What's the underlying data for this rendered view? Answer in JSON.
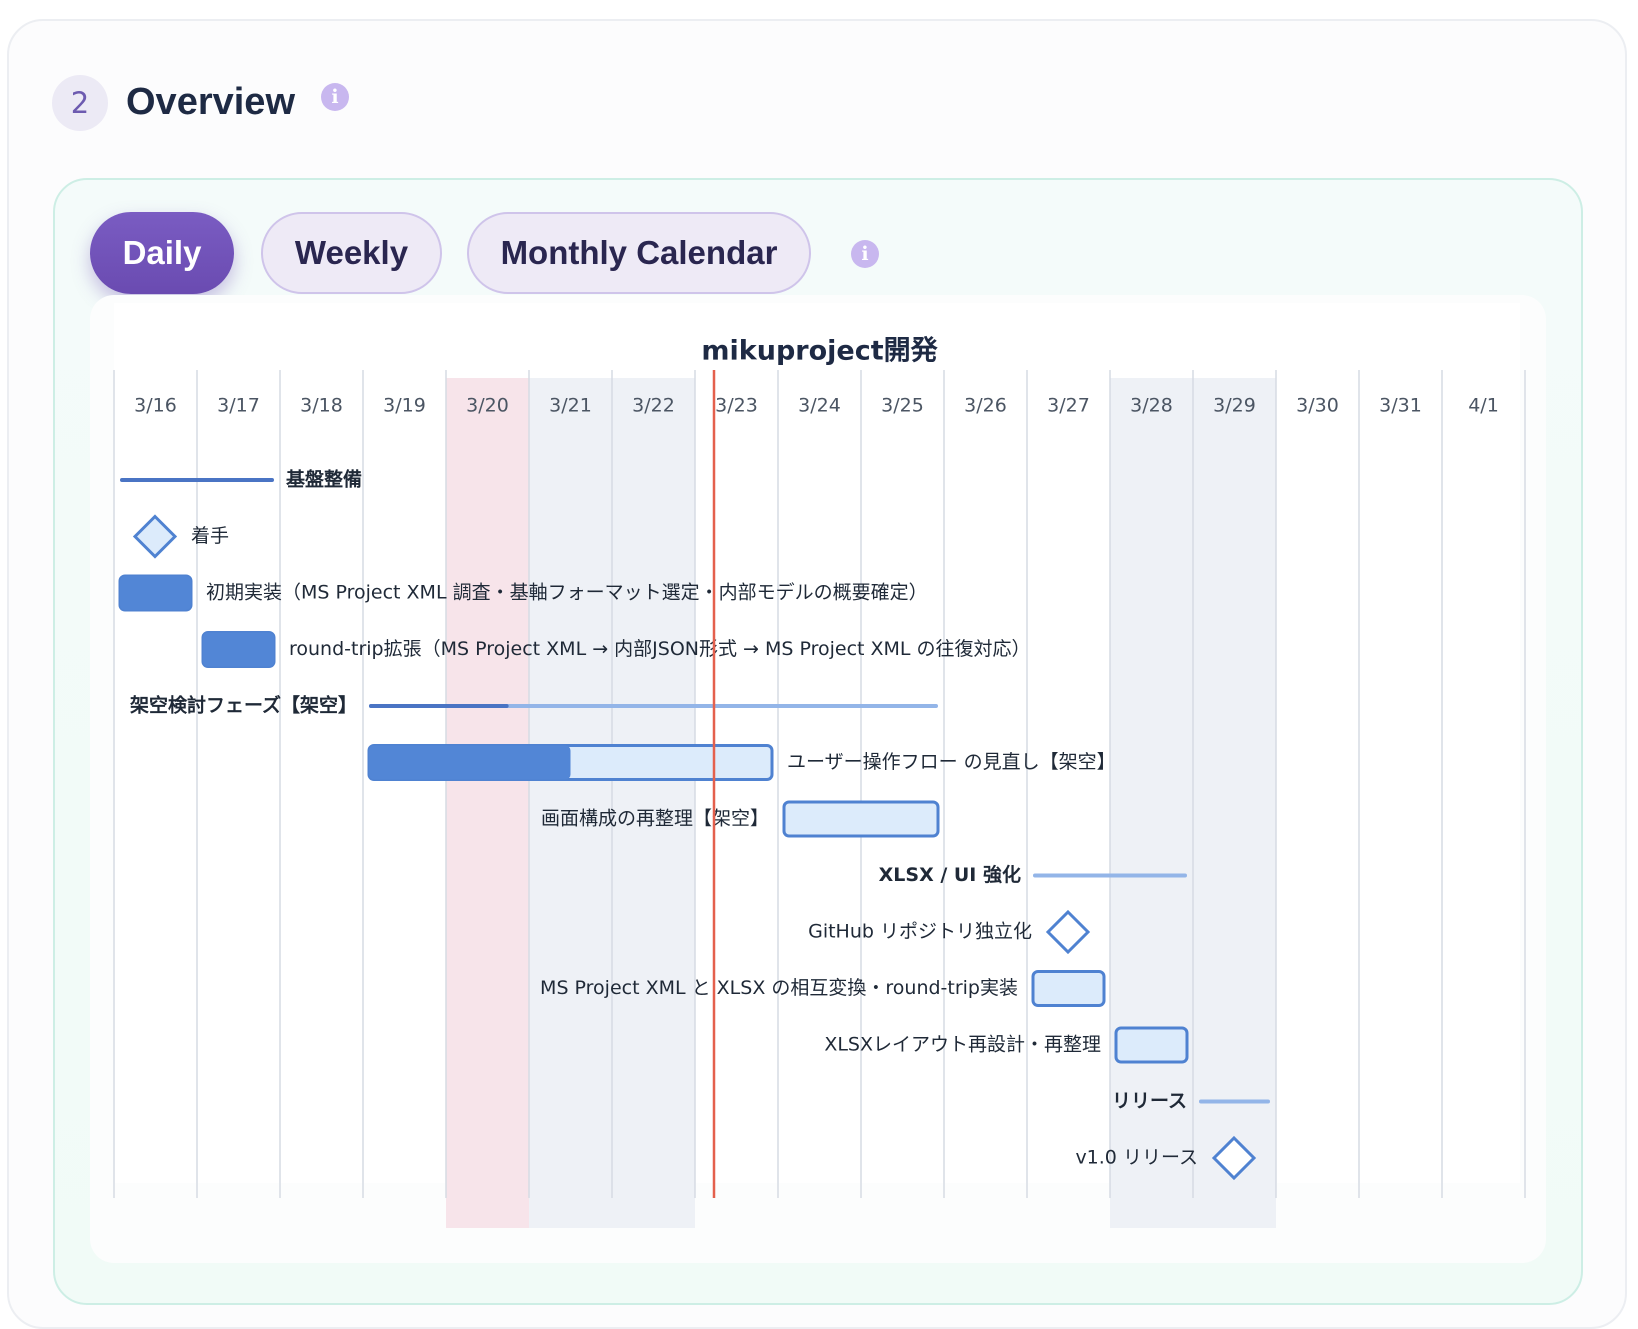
{
  "section": {
    "number": "2",
    "title": "Overview"
  },
  "tabs": [
    {
      "label": "Daily",
      "active": true
    },
    {
      "label": "Weekly",
      "active": false
    },
    {
      "label": "Monthly Calendar",
      "active": false
    }
  ],
  "icons": {
    "info": "info-icon",
    "info_glyph": "i"
  },
  "colors": {
    "accent": "#6a4bb1",
    "today_line": "#e4604d",
    "holiday_highlight": "#f7e4ea",
    "weekend_shade": "#eef1f6",
    "bar_fill": "#5286d6",
    "bar_light": "#dcebfb",
    "summary_light": "#93b5e8"
  },
  "chart_data": {
    "type": "gantt",
    "title": "mikuproject開発",
    "dates": [
      "3/16",
      "3/17",
      "3/18",
      "3/19",
      "3/20",
      "3/21",
      "3/22",
      "3/23",
      "3/24",
      "3/25",
      "3/26",
      "3/27",
      "3/28",
      "3/29",
      "3/30",
      "3/31",
      "4/1"
    ],
    "holidays": [
      "3/20"
    ],
    "weekends": [
      "3/21",
      "3/22",
      "3/28",
      "3/29"
    ],
    "today": "3/23",
    "tasks": [
      {
        "name": "基盤整備",
        "type": "summary",
        "start": "3/16",
        "end": "3/17",
        "progress": 100,
        "label_side": "right"
      },
      {
        "name": "着手",
        "type": "milestone",
        "date": "3/16",
        "progress": 0,
        "label_side": "right"
      },
      {
        "name": "初期実装（MS Project XML 調査・基軸フォーマット選定・内部モデルの概要確定）",
        "type": "task",
        "start": "3/16",
        "end": "3/16",
        "progress": 100,
        "label_side": "right"
      },
      {
        "name": "round-trip拡張（MS Project XML → 内部JSON形式 → MS Project XML の往復対応）",
        "type": "task",
        "start": "3/17",
        "end": "3/17",
        "progress": 100,
        "label_side": "right"
      },
      {
        "name": "架空検討フェーズ【架空】",
        "type": "summary",
        "start": "3/19",
        "end": "3/25",
        "progress": 24,
        "label_side": "left"
      },
      {
        "name": "ユーザー操作フロー の見直し【架空】",
        "type": "task",
        "start": "3/19",
        "end": "3/23",
        "progress": 50,
        "label_side": "right"
      },
      {
        "name": "画面構成の再整理【架空】",
        "type": "task",
        "start": "3/24",
        "end": "3/25",
        "progress": 0,
        "label_side": "left"
      },
      {
        "name": "XLSX / UI 強化",
        "type": "summary",
        "start": "3/27",
        "end": "3/28",
        "progress": 0,
        "label_side": "left"
      },
      {
        "name": "GitHub リポジトリ独立化",
        "type": "milestone",
        "date": "3/27",
        "progress": 0,
        "label_side": "left"
      },
      {
        "name": "MS Project XML と XLSX の相互変換・round-trip実装",
        "type": "task",
        "start": "3/27",
        "end": "3/27",
        "progress": 0,
        "label_side": "left"
      },
      {
        "name": "XLSXレイアウト再設計・再整理",
        "type": "task",
        "start": "3/28",
        "end": "3/28",
        "progress": 0,
        "label_side": "left"
      },
      {
        "name": "リリース",
        "type": "summary",
        "start": "3/29",
        "end": "3/29",
        "progress": 0,
        "label_side": "left"
      },
      {
        "name": "v1.0 リリース",
        "type": "milestone",
        "date": "3/29",
        "progress": 0,
        "label_side": "left"
      }
    ]
  }
}
